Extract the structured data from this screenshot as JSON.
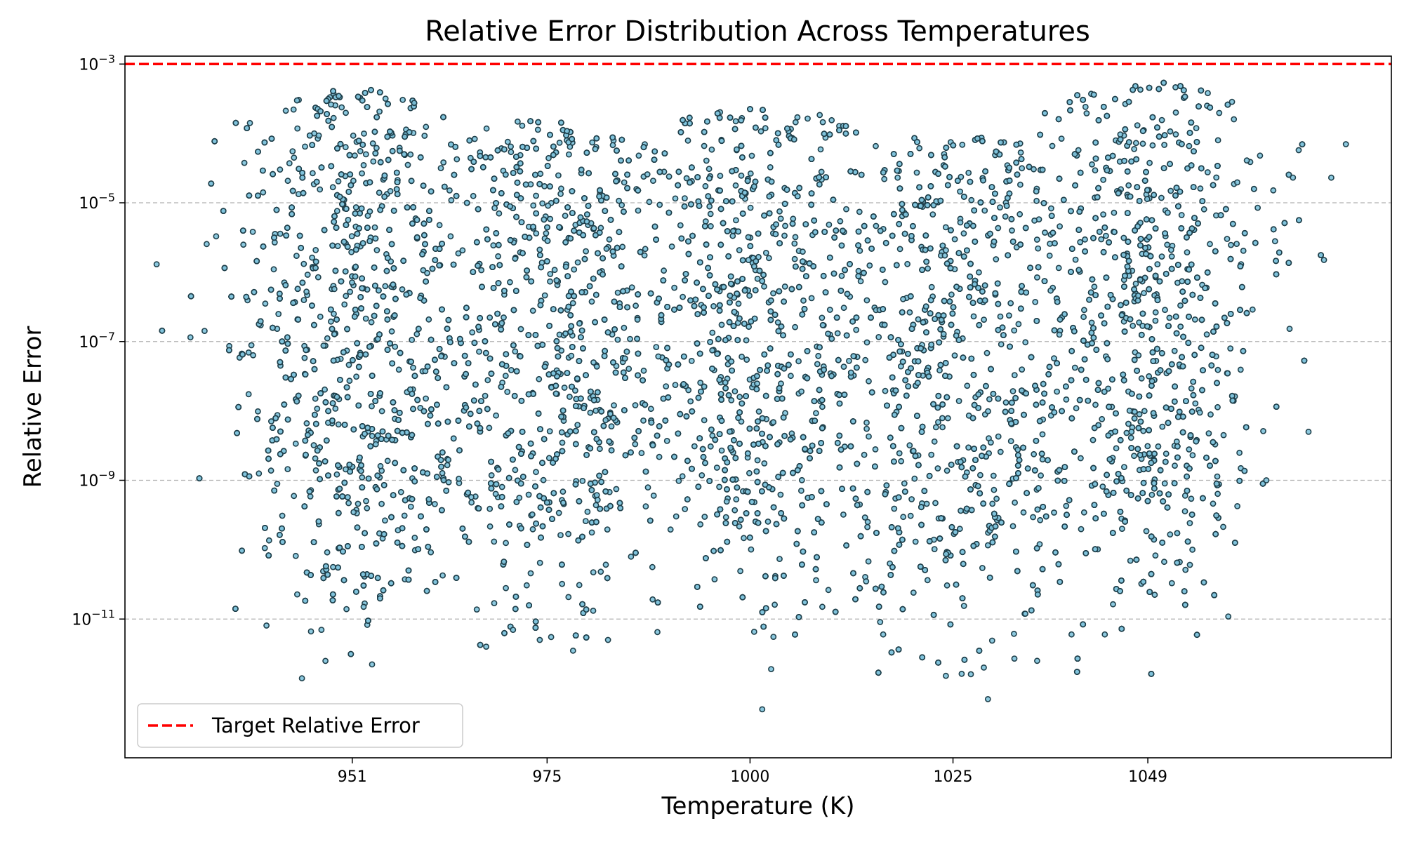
{
  "chart_data": {
    "type": "scatter",
    "title": "Relative Error Distribution Across Temperatures",
    "xlabel": "Temperature (K)",
    "ylabel": "Relative Error",
    "x_ticks": [
      951,
      975,
      1000,
      1025,
      1049
    ],
    "xlim": [
      923,
      1079
    ],
    "y_scale": "log",
    "ylim": [
      1e-13,
      0.0013
    ],
    "y_ticks": [
      {
        "exp": -3,
        "label_base": "10",
        "label_exp": "−3"
      },
      {
        "exp": -5,
        "label_base": "10",
        "label_exp": "−5"
      },
      {
        "exp": -7,
        "label_base": "10",
        "label_exp": "−7"
      },
      {
        "exp": -9,
        "label_base": "10",
        "label_exp": "−9"
      },
      {
        "exp": -11,
        "label_base": "10",
        "label_exp": "−11"
      }
    ],
    "grid": "y-major-dashed",
    "target_line": {
      "label": "Target Relative Error",
      "value": 0.001,
      "color": "#ff0000",
      "style": "dashed"
    },
    "legend": {
      "placement": "lower-left",
      "entries": [
        "Target Relative Error"
      ]
    },
    "series": [
      {
        "marker_fill": "#7fc3db",
        "marker_edge": "#1f3f4a",
        "x_range": [
          926,
          1075
        ],
        "y_range": [
          1.4e-13,
          0.00056
        ],
        "clusters": [
          {
            "x_center": 951,
            "y_max": 0.00045,
            "y_min_dense": 3e-10
          },
          {
            "x_center": 975,
            "y_max": 0.00017,
            "y_min_dense": 2e-10
          },
          {
            "x_center": 1000,
            "y_max": 0.00028,
            "y_min_dense": 5e-10
          },
          {
            "x_center": 1025,
            "y_max": 0.00011,
            "y_min_dense": 1e-10
          },
          {
            "x_center": 1049,
            "y_max": 0.00055,
            "y_min_dense": 3e-10
          }
        ],
        "outlier_points": [
          [
            944.8,
            1.4e-12
          ],
          [
            947.2,
            7e-12
          ],
          [
            952.4,
            1.5e-11
          ],
          [
            967.5,
            4e-12
          ],
          [
            970.8,
            7e-12
          ],
          [
            974.1,
            5e-12
          ],
          [
            975.5,
            5.5e-12
          ],
          [
            978.2,
            3.5e-12
          ],
          [
            982.5,
            5e-12
          ],
          [
            1001.5,
            5e-13
          ],
          [
            1002.6,
            1.9e-12
          ],
          [
            1016.4,
            6e-12
          ],
          [
            1027.2,
            1.6e-12
          ],
          [
            1028.8,
            2e-12
          ],
          [
            1029.3,
            7e-13
          ],
          [
            1039.6,
            6e-12
          ],
          [
            1043.7,
            6e-12
          ],
          [
            1008.9,
            1.5e-11
          ],
          [
            1014.3,
            3.5e-11
          ],
          [
            926.9,
            1.3e-06
          ],
          [
            1073.4,
            7e-05
          ],
          [
            1071.6,
            2.3e-05
          ],
          [
            1070.7,
            1.5e-06
          ],
          [
            1068.8,
            5e-09
          ],
          [
            1063.6,
            1e-09
          ]
        ]
      }
    ]
  }
}
